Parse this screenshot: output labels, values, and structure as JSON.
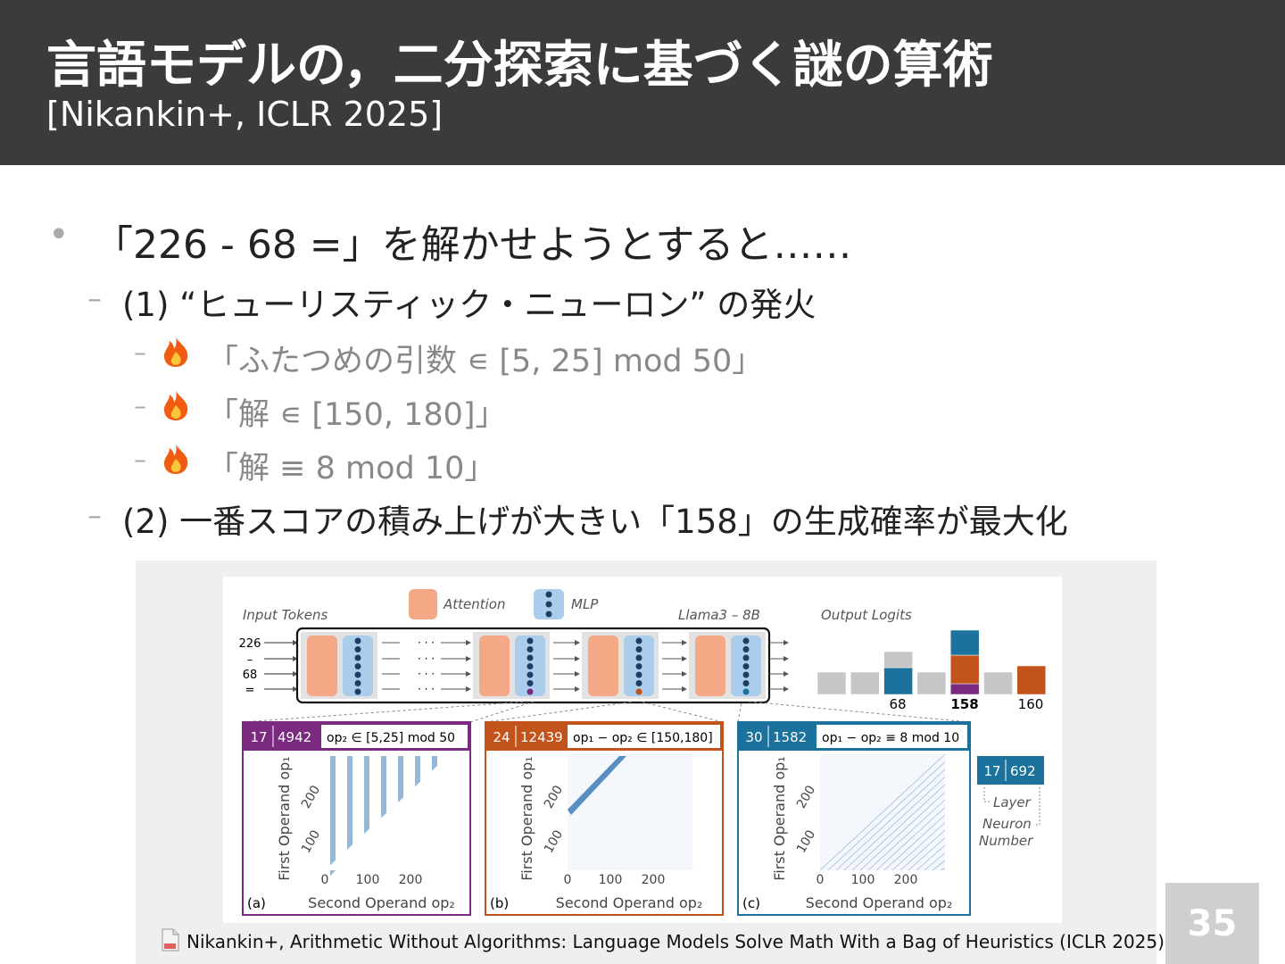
{
  "header": {
    "title": "言語モデルの，二分探索に基づく謎の算術",
    "subtitle": "[Nikankin+, ICLR 2025]"
  },
  "bullets": [
    {
      "text": "「226 - 68 =」を解かせようとすると……",
      "children": [
        {
          "text": "(1) “ヒューリスティック・ニューロン” の発火",
          "children": [
            {
              "text": "「ふたつめの引数 ∊ [5, 25] mod 50」"
            },
            {
              "text": "「解 ∊ [150, 180]」"
            },
            {
              "text": "「解 ≡ 8 mod 10」"
            }
          ]
        },
        {
          "text": "(2) 一番スコアの積み上げが大きい「158」の生成確率が最大化"
        }
      ]
    }
  ],
  "figure": {
    "legend": {
      "attention": "Attention",
      "mlp": "MLP"
    },
    "input_label": "Input Tokens",
    "model_label": "Llama3 – 8B",
    "output_label": "Output Logits",
    "dots": "· · ·",
    "tokens": [
      "226",
      "–",
      "68",
      "="
    ],
    "outputs": [
      "68",
      "158",
      "160"
    ],
    "panels": [
      {
        "layer": "17",
        "neuron": "4942",
        "formula": "op₂ ∈ [5,25] mod 50",
        "tag": "(a)",
        "y_label": "First Operand op₁",
        "x_label": "Second Operand op₂",
        "x_ticks": [
          "0",
          "100",
          "200"
        ],
        "y_ticks": [
          "100",
          "200"
        ]
      },
      {
        "layer": "24",
        "neuron": "12439",
        "formula": "op₁ − op₂ ∈ [150,180]",
        "tag": "(b)",
        "y_label": "First Operand op₁",
        "x_label": "Second Operand op₂",
        "x_ticks": [
          "0",
          "100",
          "200"
        ],
        "y_ticks": [
          "100",
          "200"
        ]
      },
      {
        "layer": "30",
        "neuron": "1582",
        "formula": "op₁ − op₂ ≡ 8 mod 10",
        "tag": "(c)",
        "y_label": "First Operand op₁",
        "x_label": "Second Operand op₂",
        "x_ticks": [
          "0",
          "100",
          "200"
        ],
        "y_ticks": [
          "100",
          "200"
        ]
      }
    ],
    "key": {
      "layer": "17",
      "neuron": "692",
      "layer_label": "Layer",
      "neuron_label_1": "Neuron",
      "neuron_label_2": "Number"
    }
  },
  "citation": "Nikankin+, Arithmetic Without Algorithms: Language Models Solve Math With a Bag of Heuristics (ICLR 2025)",
  "page_number": "35"
}
